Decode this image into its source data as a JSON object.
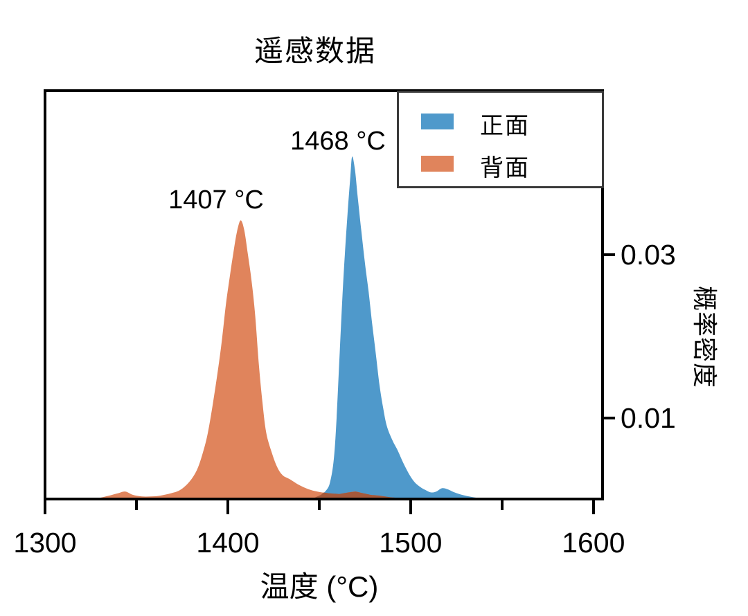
{
  "title": "遥感数据",
  "chart_data": {
    "type": "area",
    "title": "遥感数据",
    "xlabel": "温度 (°C)",
    "ylabel": "概率密度",
    "xlim": [
      1300,
      1605
    ],
    "ylim": [
      0,
      0.05
    ],
    "x_ticks": [
      1300,
      1400,
      1500,
      1600
    ],
    "x_minor_ticks": [
      1350,
      1450,
      1550
    ],
    "y_ticks": [
      0.01,
      0.03
    ],
    "y_tick_labels": [
      "0.01",
      "0.03"
    ],
    "grid": false,
    "legend_position": "upper right",
    "overlap_color": "#a5593b",
    "series": [
      {
        "name": "正面",
        "color": "#4f99cb",
        "peak_label": "1468 °C",
        "peak_x": 1468,
        "peak_y": 0.042,
        "x": [
          1444,
          1448,
          1451,
          1454,
          1456,
          1458,
          1459.5,
          1461,
          1462.5,
          1464,
          1465.5,
          1467,
          1468,
          1469.5,
          1471,
          1473,
          1475,
          1477,
          1479,
          1481,
          1483,
          1485,
          1487,
          1490,
          1493,
          1496,
          1499,
          1502,
          1505,
          1508,
          1511,
          1514,
          1517,
          1520,
          1524,
          1528,
          1532,
          1537,
          1541
        ],
        "y": [
          0,
          0.0003,
          0.0006,
          0.0012,
          0.0022,
          0.005,
          0.01,
          0.017,
          0.024,
          0.03,
          0.035,
          0.0395,
          0.042,
          0.0405,
          0.0372,
          0.033,
          0.029,
          0.0255,
          0.0215,
          0.0178,
          0.014,
          0.0112,
          0.009,
          0.0073,
          0.006,
          0.0045,
          0.0032,
          0.0022,
          0.0016,
          0.0012,
          0.0009,
          0.001,
          0.0014,
          0.0013,
          0.0009,
          0.0006,
          0.0004,
          0.0002,
          0
        ]
      },
      {
        "name": "背面",
        "color": "#e0845c",
        "peak_label": "1407 °C",
        "peak_x": 1407,
        "peak_y": 0.0342,
        "x": [
          1322,
          1329,
          1335,
          1340,
          1344,
          1348,
          1353,
          1358,
          1363,
          1369,
          1374,
          1379,
          1383,
          1386,
          1389,
          1392,
          1395,
          1397,
          1399,
          1401,
          1403,
          1405,
          1407,
          1409,
          1411,
          1413,
          1415,
          1417,
          1419,
          1421,
          1424,
          1427,
          1430,
          1434,
          1439,
          1444,
          1449,
          1455,
          1461,
          1466,
          1470,
          1474,
          1478,
          1483,
          1489,
          1495,
          1501,
          1505,
          1508
        ],
        "y": [
          0,
          0.0002,
          0.0005,
          0.0008,
          0.001,
          0.0006,
          0.0004,
          0.0004,
          0.0005,
          0.0008,
          0.0012,
          0.0022,
          0.0036,
          0.0055,
          0.0081,
          0.012,
          0.0165,
          0.02,
          0.024,
          0.0272,
          0.0302,
          0.0328,
          0.0342,
          0.033,
          0.03,
          0.0268,
          0.0225,
          0.0165,
          0.0118,
          0.0082,
          0.0058,
          0.004,
          0.003,
          0.0025,
          0.0018,
          0.0013,
          0.001,
          0.0008,
          0.0007,
          0.0009,
          0.001,
          0.0008,
          0.0006,
          0.0005,
          0.0003,
          0.0002,
          0.0002,
          0.0001,
          0
        ]
      }
    ]
  }
}
